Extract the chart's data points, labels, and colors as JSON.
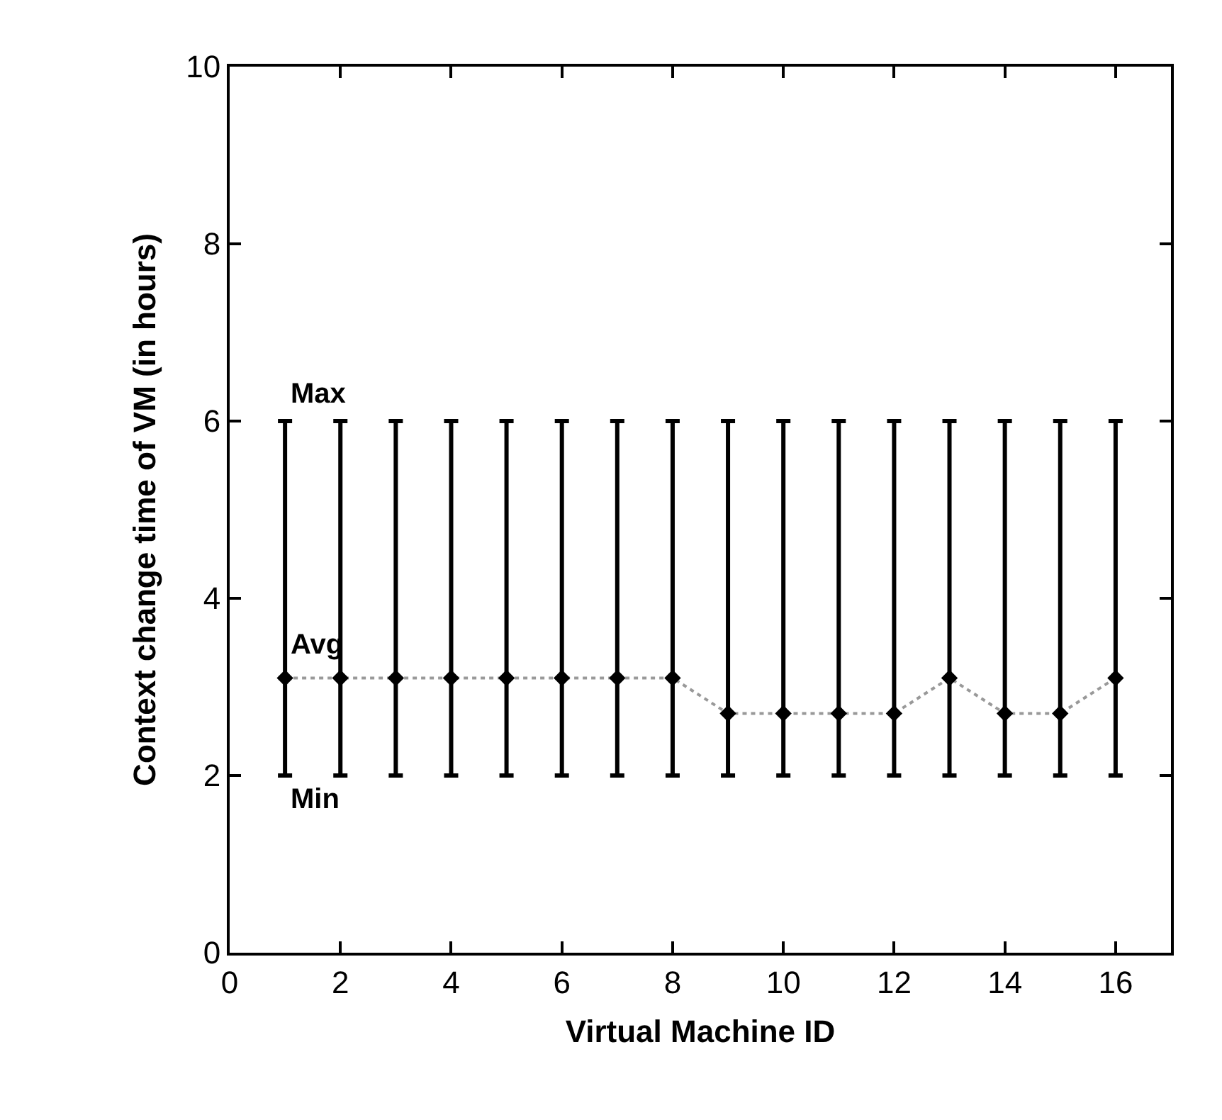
{
  "chart_data": {
    "type": "line",
    "xlabel": "Virtual Machine ID",
    "ylabel": "Context change time of VM (in hours)",
    "x": [
      1,
      2,
      3,
      4,
      5,
      6,
      7,
      8,
      9,
      10,
      11,
      12,
      13,
      14,
      15,
      16
    ],
    "series": [
      {
        "color": "#000000",
        "values": [
          3.1,
          3.1,
          3.1,
          3.1,
          3.1,
          3.1,
          3.1,
          3.1,
          2.7,
          2.7,
          2.7,
          2.7,
          3.1,
          2.7,
          2.7,
          3.1
        ],
        "errors": [
          [
            2,
            6
          ],
          [
            2,
            6
          ],
          [
            2,
            6
          ],
          [
            2,
            6
          ],
          [
            2,
            6
          ],
          [
            2,
            6
          ],
          [
            2,
            6
          ],
          [
            2,
            6
          ],
          [
            2,
            6
          ],
          [
            2,
            6
          ],
          [
            2,
            6
          ],
          [
            2,
            6
          ],
          [
            2,
            6
          ],
          [
            2,
            6
          ],
          [
            2,
            6
          ],
          [
            2,
            6
          ]
        ]
      }
    ],
    "annotations": [
      "Max",
      "Avg",
      "Min"
    ],
    "xlim": [
      0,
      17
    ],
    "xticks": [
      0,
      2,
      4,
      6,
      8,
      10,
      12,
      14,
      16
    ],
    "ylim": [
      0,
      10
    ],
    "yticks": [
      0,
      2,
      4,
      6,
      8,
      10
    ],
    "marker": "diamond",
    "line_style": "dotted"
  }
}
